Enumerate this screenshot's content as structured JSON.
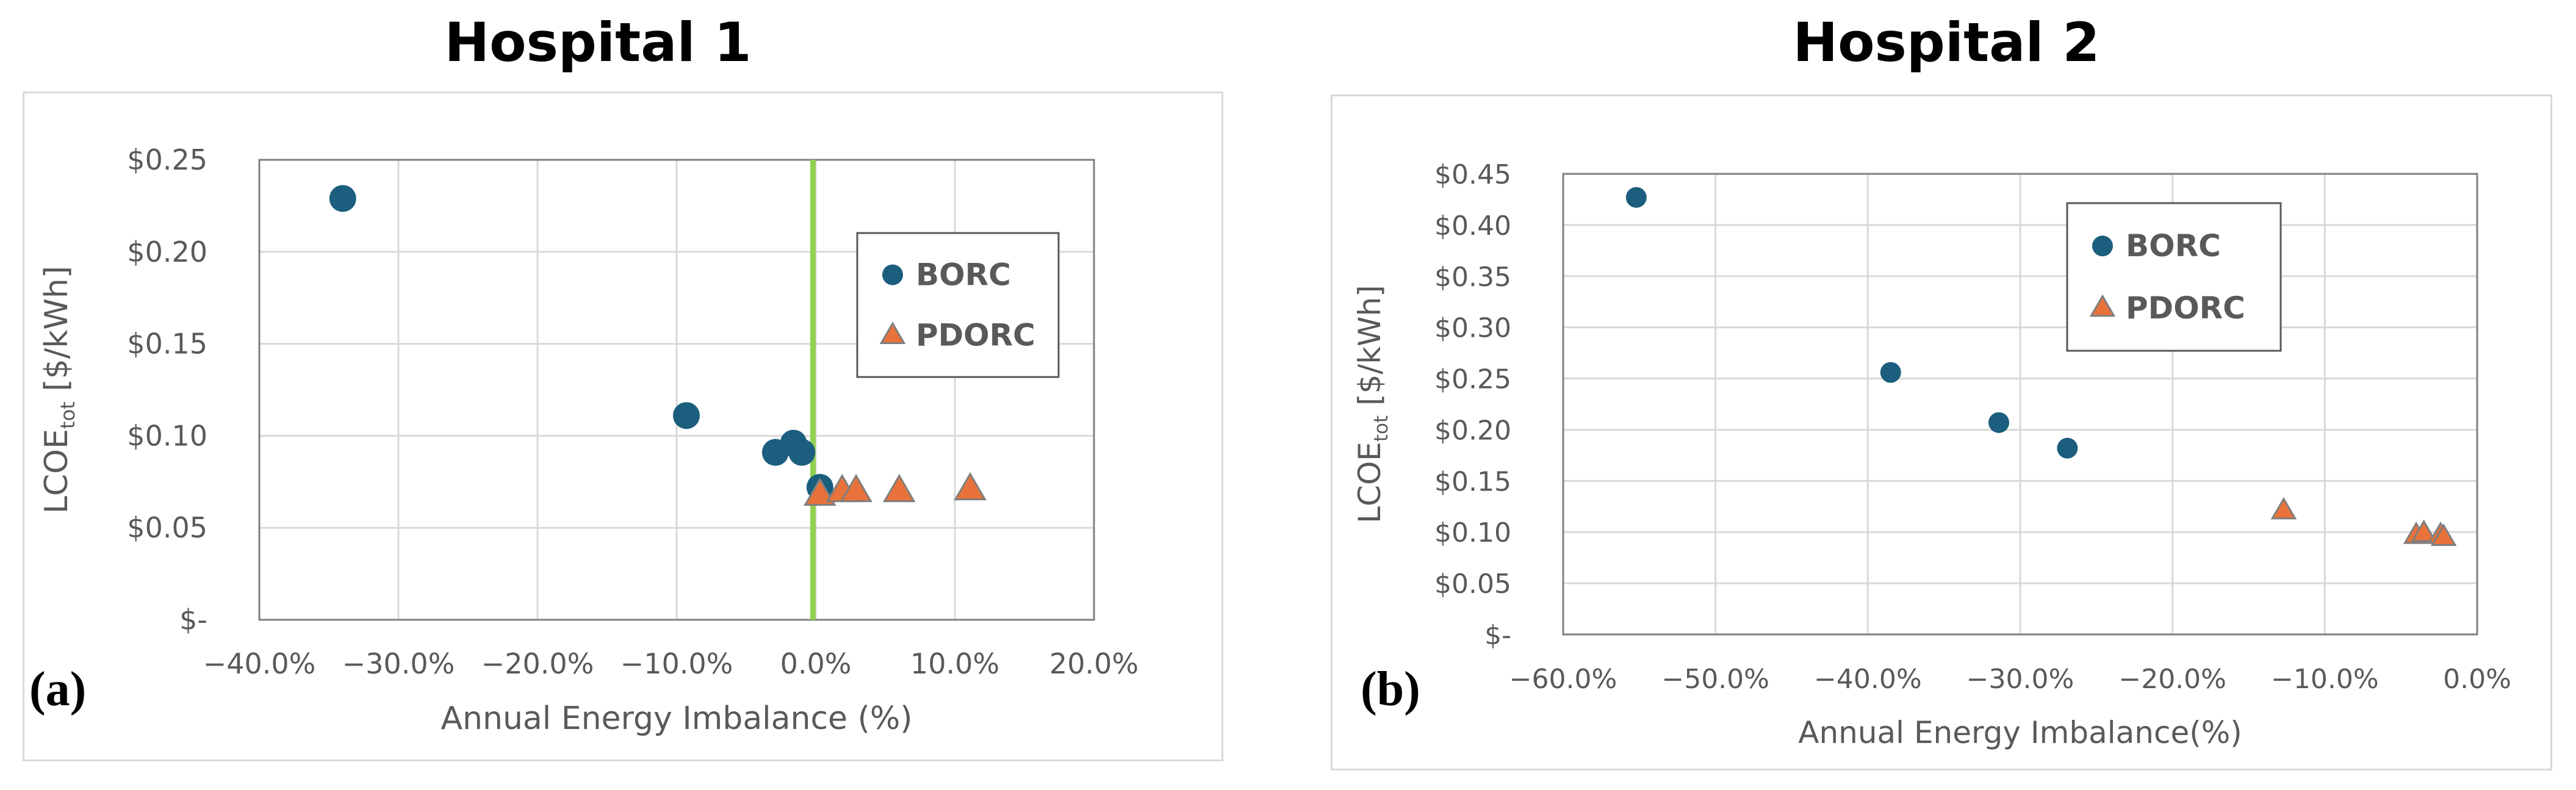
{
  "chart_data": [
    {
      "type": "scatter",
      "title": "Hospital 1",
      "panel_label": "(a)",
      "xlabel": "Annual Energy Imbalance (%)",
      "ylabel_main": "LCOE",
      "ylabel_sub": "tot",
      "ylabel_unit": " [$/kWh]",
      "xlim": [
        -0.4,
        0.2
      ],
      "ylim": [
        0,
        0.25
      ],
      "x_ticks": [
        -0.4,
        -0.3,
        -0.2,
        -0.1,
        0.0,
        0.1,
        0.2
      ],
      "x_tick_labels": [
        "-40.0%",
        "-30.0%",
        "-20.0%",
        "-10.0%",
        "0.0%",
        "10.0%",
        "20.0%"
      ],
      "y_ticks": [
        0,
        0.05,
        0.1,
        0.15,
        0.2,
        0.25
      ],
      "y_tick_labels": [
        "$-",
        "$0.05",
        "$0.10",
        "$0.15",
        "$0.20",
        "$0.25"
      ],
      "grid": true,
      "legend_position": "upper-right",
      "reference_line": {
        "x": -0.002,
        "color": "#92d050"
      },
      "series": [
        {
          "name": "BORC",
          "marker": "circle",
          "color": "#1b5e7e",
          "points": [
            {
              "x": -0.34,
              "y": 0.229
            },
            {
              "x": -0.093,
              "y": 0.111
            },
            {
              "x": -0.029,
              "y": 0.091
            },
            {
              "x": -0.016,
              "y": 0.096
            },
            {
              "x": -0.01,
              "y": 0.091
            },
            {
              "x": 0.003,
              "y": 0.072
            }
          ]
        },
        {
          "name": "PDORC",
          "marker": "triangle",
          "color": "#e8723a",
          "points": [
            {
              "x": 0.003,
              "y": 0.068
            },
            {
              "x": 0.019,
              "y": 0.07
            },
            {
              "x": 0.029,
              "y": 0.07
            },
            {
              "x": 0.06,
              "y": 0.07
            },
            {
              "x": 0.111,
              "y": 0.071
            }
          ]
        }
      ]
    },
    {
      "type": "scatter",
      "title": "Hospital 2",
      "panel_label": "(b)",
      "xlabel": "Annual Energy Imbalance(%)",
      "ylabel_main": "LCOE",
      "ylabel_sub": "tot",
      "ylabel_unit": " [$/kWh]",
      "xlim": [
        -0.6,
        0.0
      ],
      "ylim": [
        0,
        0.45
      ],
      "x_ticks": [
        -0.6,
        -0.5,
        -0.4,
        -0.3,
        -0.2,
        -0.1,
        0.0
      ],
      "x_tick_labels": [
        "-60.0%",
        "-50.0%",
        "-40.0%",
        "-30.0%",
        "-20.0%",
        "-10.0%",
        "0.0%"
      ],
      "y_ticks": [
        0,
        0.05,
        0.1,
        0.15,
        0.2,
        0.25,
        0.3,
        0.35,
        0.4,
        0.45
      ],
      "y_tick_labels": [
        "$-",
        "$0.05",
        "$0.10",
        "$0.15",
        "$0.20",
        "$0.25",
        "$0.30",
        "$0.35",
        "$0.40",
        "$0.45"
      ],
      "grid": true,
      "legend_position": "upper-right",
      "series": [
        {
          "name": "BORC",
          "marker": "circle",
          "color": "#1b5e7e",
          "points": [
            {
              "x": -0.552,
              "y": 0.427
            },
            {
              "x": -0.385,
              "y": 0.256
            },
            {
              "x": -0.314,
              "y": 0.207
            },
            {
              "x": -0.269,
              "y": 0.182
            }
          ]
        },
        {
          "name": "PDORC",
          "marker": "triangle",
          "color": "#e8723a",
          "points": [
            {
              "x": -0.127,
              "y": 0.121
            },
            {
              "x": -0.04,
              "y": 0.097
            },
            {
              "x": -0.035,
              "y": 0.099
            },
            {
              "x": -0.024,
              "y": 0.097
            },
            {
              "x": -0.022,
              "y": 0.095
            }
          ]
        }
      ]
    }
  ]
}
